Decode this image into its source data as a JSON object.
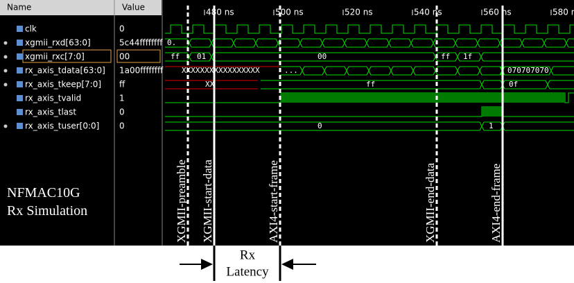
{
  "header": {
    "name": "Name",
    "value": "Value"
  },
  "timeline": [
    "480 ns",
    "500 ns",
    "520 ns",
    "540 ns",
    "560 ns",
    "580 n"
  ],
  "signals": [
    {
      "name": "clk",
      "value": "0"
    },
    {
      "name": "xgmii_rxd[63:0]",
      "value": "5c44ffffffff",
      "segments": [
        "0."
      ]
    },
    {
      "name": "xgmii_rxc[7:0]",
      "value": "00",
      "segments": [
        "ff",
        "01",
        "00",
        "ff",
        "1f"
      ]
    },
    {
      "name": "rx_axis_tdata[63:0]",
      "value": "1a00ffffffff",
      "segments": [
        "XXXXXXXXXXXXXXXXX",
        "...",
        "070707070"
      ]
    },
    {
      "name": "rx_axis_tkeep[7:0]",
      "value": "ff",
      "segments": [
        "XX",
        "ff",
        "0f"
      ]
    },
    {
      "name": "rx_axis_tvalid",
      "value": "1"
    },
    {
      "name": "rx_axis_tlast",
      "value": "0"
    },
    {
      "name": "rx_axis_tuser[0:0]",
      "value": "0",
      "segments": [
        "0",
        "1"
      ]
    }
  ],
  "markers": [
    "XGMII-preamble",
    "XGMII-start-data",
    "AXI4-start-frame",
    "XGMII-end-data",
    "AXI4-end-frame"
  ],
  "caption": [
    "NFMAC10G",
    "Rx Simulation"
  ],
  "latency": [
    "Rx",
    "Latency"
  ]
}
